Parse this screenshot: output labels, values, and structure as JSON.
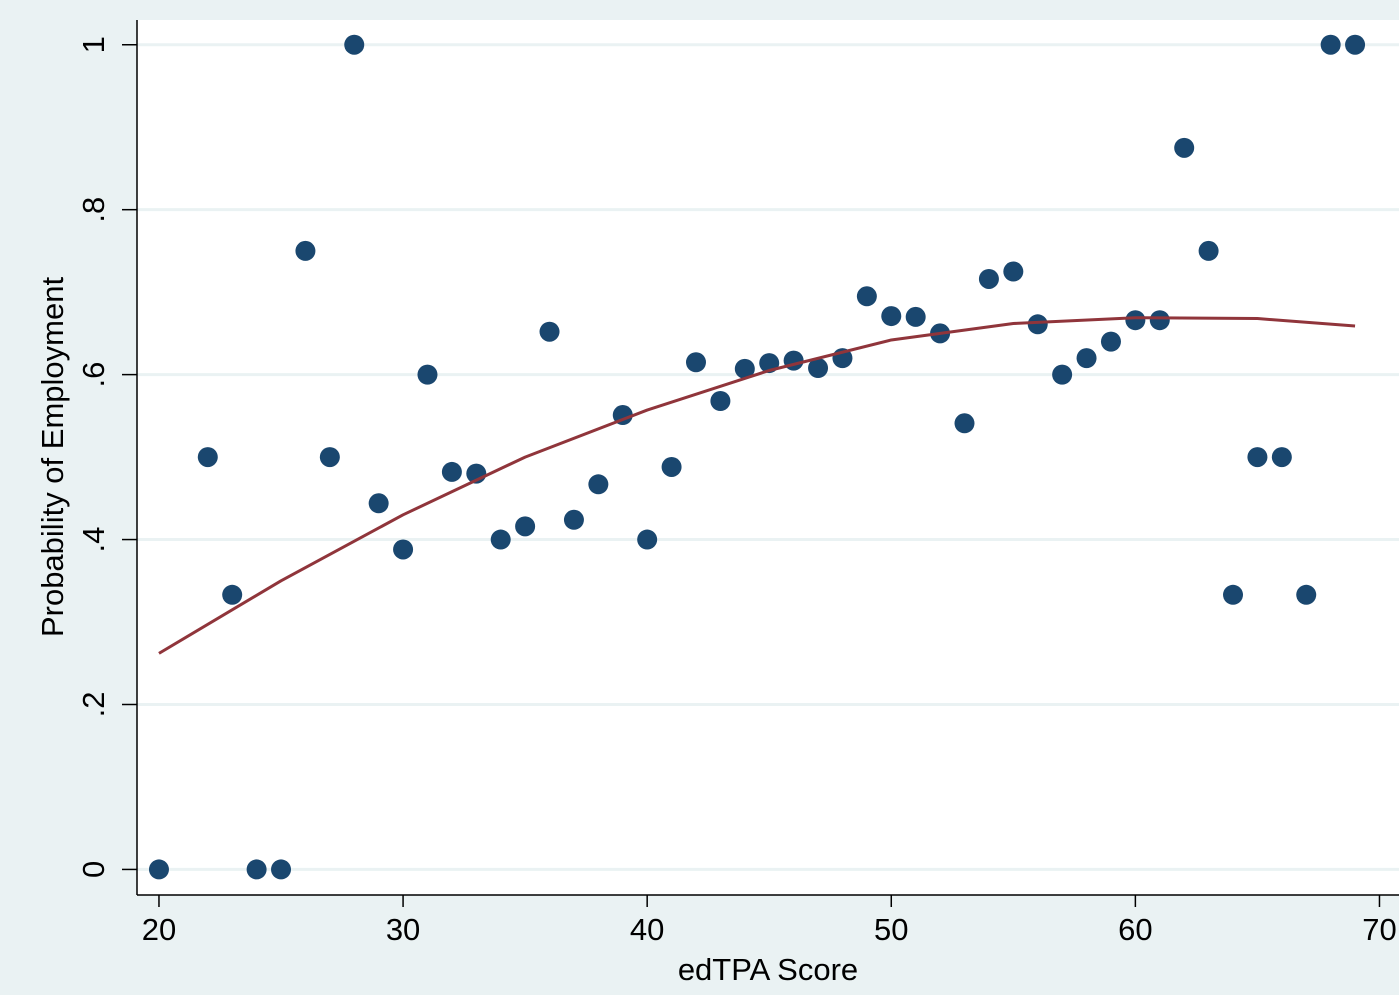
{
  "chart_data": {
    "type": "scatter",
    "x_label": "edTPA Score",
    "y_label": "Probability of Employment",
    "xlim": [
      19.1,
      70.8
    ],
    "ylim": [
      -0.031,
      1.03
    ],
    "xticks": [
      20,
      30,
      40,
      50,
      60,
      70
    ],
    "yticks": [
      0,
      {
        "value": 0.2,
        "label": ".2"
      },
      {
        "value": 0.4,
        "label": ".4"
      },
      {
        "value": 0.6,
        "label": ".6"
      },
      {
        "value": 0.8,
        "label": ".8"
      },
      1
    ],
    "grid": true,
    "points": {
      "color": "#1a476f",
      "x": [
        20,
        22,
        23,
        24,
        25,
        26,
        27,
        28,
        29,
        30,
        31,
        32,
        33,
        34,
        35,
        36,
        37,
        38,
        39,
        40,
        41,
        42,
        43,
        44,
        45,
        46,
        47,
        48,
        49,
        50,
        51,
        52,
        53,
        54,
        55,
        56,
        57,
        58,
        59,
        60,
        61,
        62,
        63,
        64,
        65,
        66,
        67,
        68,
        69
      ],
      "y": [
        0,
        0.5,
        0.333,
        0,
        0,
        0.75,
        0.5,
        1,
        0.444,
        0.388,
        0.6,
        0.482,
        0.48,
        0.4,
        0.416,
        0.652,
        0.424,
        0.467,
        0.551,
        0.4,
        0.488,
        0.615,
        0.568,
        0.607,
        0.614,
        0.617,
        0.608,
        0.62,
        0.695,
        0.671,
        0.67,
        0.65,
        0.541,
        0.716,
        0.725,
        0.661,
        0.6,
        0.62,
        0.64,
        0.666,
        0.666,
        0.875,
        0.75,
        0.333,
        0.5,
        0.5,
        0.333,
        1,
        1
      ]
    },
    "fit": {
      "color": "#90353b",
      "x": [
        20,
        25,
        30,
        35,
        40,
        45,
        50,
        55,
        60,
        65,
        69
      ],
      "y": [
        0.262,
        0.35,
        0.43,
        0.5,
        0.557,
        0.605,
        0.642,
        0.662,
        0.669,
        0.668,
        0.659
      ]
    }
  }
}
